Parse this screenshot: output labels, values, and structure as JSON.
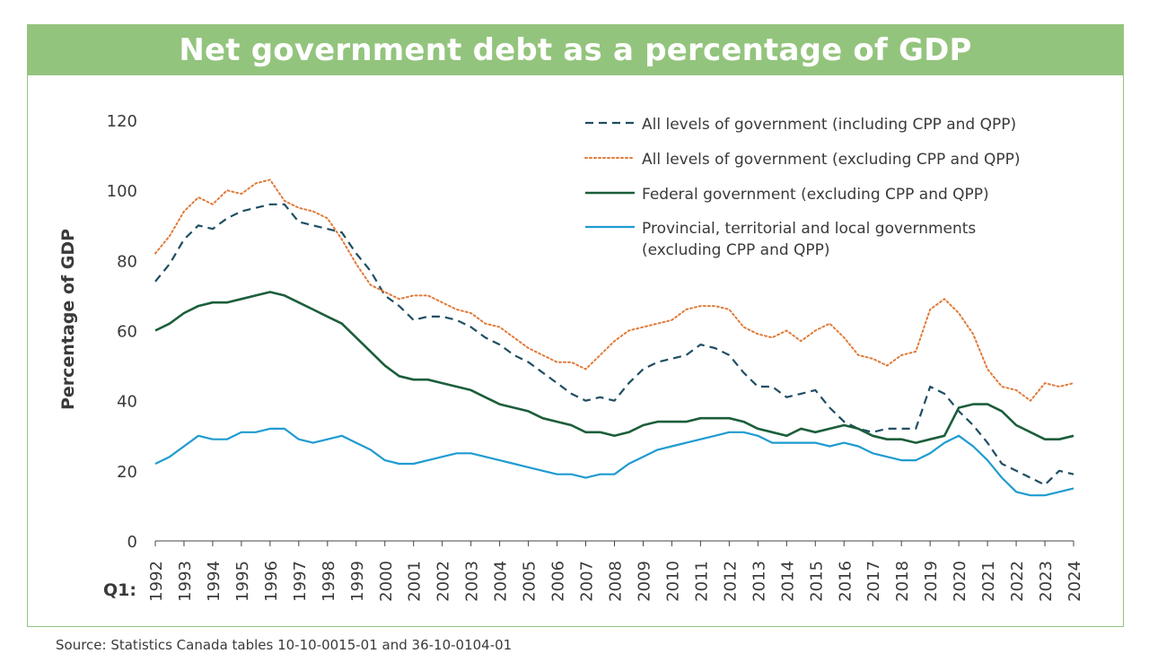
{
  "source_note": "Source: Statistics Canada tables 10-10-0015-01 and 36-10-0104-01",
  "colors": {
    "banner": "#93c47d",
    "all_incl": "#1f4e62",
    "all_excl": "#e07b39",
    "federal": "#1b5e3b",
    "provincial": "#1f9bd1"
  },
  "chart_data": {
    "type": "line",
    "title": "Net government debt as a percentage of GDP",
    "xlabel": "Q1:",
    "ylabel": "Percentage of GDP",
    "ylim": [
      0,
      120
    ],
    "yticks": [
      0,
      20,
      40,
      60,
      80,
      100,
      120
    ],
    "grid": false,
    "legend_position": "top-right",
    "categories": [
      "1992",
      "1993",
      "1994",
      "1995",
      "1996",
      "1997",
      "1998",
      "1999",
      "2000",
      "2001",
      "2002",
      "2003",
      "2004",
      "2005",
      "2006",
      "2007",
      "2008",
      "2009",
      "2010",
      "2011",
      "2012",
      "2013",
      "2014",
      "2015",
      "2016",
      "2017",
      "2018",
      "2019",
      "2020",
      "2021",
      "2022",
      "2023",
      "2024"
    ],
    "series": [
      {
        "name": "All levels of government (including CPP and QPP)",
        "style": "dashed",
        "x": [
          1992,
          1992.5,
          1993,
          1993.5,
          1994,
          1994.5,
          1995,
          1995.5,
          1996,
          1996.5,
          1997,
          1997.5,
          1998,
          1998.5,
          1999,
          1999.5,
          2000,
          2000.5,
          2001,
          2001.5,
          2002,
          2002.5,
          2003,
          2003.5,
          2004,
          2004.5,
          2005,
          2005.5,
          2006,
          2006.5,
          2007,
          2007.5,
          2008,
          2008.5,
          2009,
          2009.5,
          2010,
          2010.5,
          2011,
          2011.5,
          2012,
          2012.5,
          2013,
          2013.5,
          2014,
          2014.5,
          2015,
          2015.5,
          2016,
          2016.5,
          2017,
          2017.5,
          2018,
          2018.5,
          2019,
          2019.5,
          2020,
          2020.5,
          2021,
          2021.5,
          2022,
          2022.5,
          2023,
          2023.5,
          2024
        ],
        "values": [
          74,
          79,
          86,
          90,
          89,
          92,
          94,
          95,
          96,
          96,
          91,
          90,
          89,
          88,
          82,
          77,
          70,
          67,
          63,
          64,
          64,
          63,
          61,
          58,
          56,
          53,
          51,
          48,
          45,
          42,
          40,
          41,
          40,
          45,
          49,
          51,
          52,
          53,
          56,
          55,
          53,
          48,
          44,
          44,
          41,
          42,
          43,
          38,
          34,
          32,
          31,
          32,
          32,
          32,
          44,
          42,
          37,
          33,
          28,
          22,
          20,
          18,
          16,
          20,
          19
        ]
      },
      {
        "name": "All levels of government (excluding CPP and QPP)",
        "style": "dotted",
        "x": [
          1992,
          1992.5,
          1993,
          1993.5,
          1994,
          1994.5,
          1995,
          1995.5,
          1996,
          1996.5,
          1997,
          1997.5,
          1998,
          1998.5,
          1999,
          1999.5,
          2000,
          2000.5,
          2001,
          2001.5,
          2002,
          2002.5,
          2003,
          2003.5,
          2004,
          2004.5,
          2005,
          2005.5,
          2006,
          2006.5,
          2007,
          2007.5,
          2008,
          2008.5,
          2009,
          2009.5,
          2010,
          2010.5,
          2011,
          2011.5,
          2012,
          2012.5,
          2013,
          2013.5,
          2014,
          2014.5,
          2015,
          2015.5,
          2016,
          2016.5,
          2017,
          2017.5,
          2018,
          2018.5,
          2019,
          2019.5,
          2020,
          2020.5,
          2021,
          2021.5,
          2022,
          2022.5,
          2023,
          2023.5,
          2024
        ],
        "values": [
          82,
          87,
          94,
          98,
          96,
          100,
          99,
          102,
          103,
          97,
          95,
          94,
          92,
          86,
          79,
          73,
          71,
          69,
          70,
          70,
          68,
          66,
          65,
          62,
          61,
          58,
          55,
          53,
          51,
          51,
          49,
          53,
          57,
          60,
          61,
          62,
          63,
          66,
          67,
          67,
          66,
          61,
          59,
          58,
          60,
          57,
          60,
          62,
          58,
          53,
          52,
          50,
          53,
          54,
          66,
          69,
          65,
          59,
          49,
          44,
          43,
          40,
          45,
          44,
          45
        ]
      },
      {
        "name": "Federal government (excluding CPP and QPP)",
        "style": "solid",
        "x": [
          1992,
          1992.5,
          1993,
          1993.5,
          1994,
          1994.5,
          1995,
          1995.5,
          1996,
          1996.5,
          1997,
          1997.5,
          1998,
          1998.5,
          1999,
          1999.5,
          2000,
          2000.5,
          2001,
          2001.5,
          2002,
          2002.5,
          2003,
          2003.5,
          2004,
          2004.5,
          2005,
          2005.5,
          2006,
          2006.5,
          2007,
          2007.5,
          2008,
          2008.5,
          2009,
          2009.5,
          2010,
          2010.5,
          2011,
          2011.5,
          2012,
          2012.5,
          2013,
          2013.5,
          2014,
          2014.5,
          2015,
          2015.5,
          2016,
          2016.5,
          2017,
          2017.5,
          2018,
          2018.5,
          2019,
          2019.5,
          2020,
          2020.5,
          2021,
          2021.5,
          2022,
          2022.5,
          2023,
          2023.5,
          2024
        ],
        "values": [
          60,
          62,
          65,
          67,
          68,
          68,
          69,
          70,
          71,
          70,
          68,
          66,
          64,
          62,
          58,
          54,
          50,
          47,
          46,
          46,
          45,
          44,
          43,
          41,
          39,
          38,
          37,
          35,
          34,
          33,
          31,
          31,
          30,
          31,
          33,
          34,
          34,
          34,
          35,
          35,
          35,
          34,
          32,
          31,
          30,
          32,
          31,
          32,
          33,
          32,
          30,
          29,
          29,
          28,
          29,
          30,
          38,
          39,
          39,
          37,
          33,
          31,
          29,
          29,
          30
        ]
      },
      {
        "name": "Provincial, territorial and local governments (excluding CPP and QPP)",
        "style": "solid",
        "x": [
          1992,
          1992.5,
          1993,
          1993.5,
          1994,
          1994.5,
          1995,
          1995.5,
          1996,
          1996.5,
          1997,
          1997.5,
          1998,
          1998.5,
          1999,
          1999.5,
          2000,
          2000.5,
          2001,
          2001.5,
          2002,
          2002.5,
          2003,
          2003.5,
          2004,
          2004.5,
          2005,
          2005.5,
          2006,
          2006.5,
          2007,
          2007.5,
          2008,
          2008.5,
          2009,
          2009.5,
          2010,
          2010.5,
          2011,
          2011.5,
          2012,
          2012.5,
          2013,
          2013.5,
          2014,
          2014.5,
          2015,
          2015.5,
          2016,
          2016.5,
          2017,
          2017.5,
          2018,
          2018.5,
          2019,
          2019.5,
          2020,
          2020.5,
          2021,
          2021.5,
          2022,
          2022.5,
          2023,
          2023.5,
          2024
        ],
        "values": [
          22,
          24,
          27,
          30,
          29,
          29,
          31,
          31,
          32,
          32,
          29,
          28,
          29,
          30,
          28,
          26,
          23,
          22,
          22,
          23,
          24,
          25,
          25,
          24,
          23,
          22,
          21,
          20,
          19,
          19,
          18,
          19,
          19,
          22,
          24,
          26,
          27,
          28,
          29,
          30,
          31,
          31,
          30,
          28,
          28,
          28,
          28,
          27,
          28,
          27,
          25,
          24,
          23,
          23,
          25,
          28,
          30,
          27,
          23,
          18,
          14,
          13,
          13,
          14,
          15
        ]
      }
    ]
  }
}
